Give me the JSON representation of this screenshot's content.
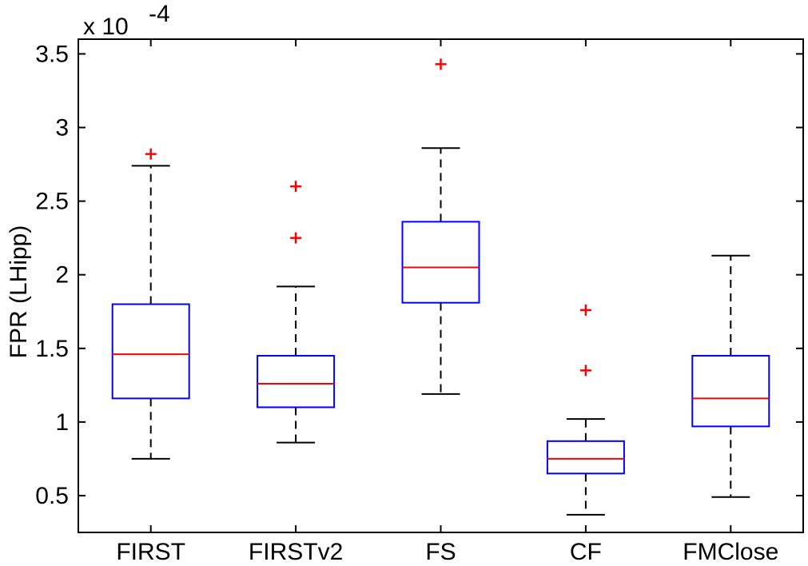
{
  "chart_data": {
    "type": "box",
    "ylabel": "FPR (LHipp)",
    "xlabel": "",
    "title": "",
    "y_multiplier": "x 10",
    "y_exponent": "-4",
    "ylim": [
      0.25,
      3.6
    ],
    "yticks": [
      0.5,
      1,
      1.5,
      2,
      2.5,
      3,
      3.5
    ],
    "ytick_labels": [
      "0.5",
      "1",
      "1.5",
      "2",
      "2.5",
      "3",
      "3.5"
    ],
    "grid": false,
    "categories": [
      "FIRST",
      "FIRSTv2",
      "FS",
      "CF",
      "FMClose"
    ],
    "boxes": [
      {
        "name": "FIRST",
        "whisker_low": 0.75,
        "q1": 1.16,
        "median": 1.46,
        "q3": 1.8,
        "whisker_high": 2.74,
        "outliers": [
          2.82
        ]
      },
      {
        "name": "FIRSTv2",
        "whisker_low": 0.86,
        "q1": 1.1,
        "median": 1.26,
        "q3": 1.45,
        "whisker_high": 1.92,
        "outliers": [
          2.6,
          2.25
        ]
      },
      {
        "name": "FS",
        "whisker_low": 1.19,
        "q1": 1.81,
        "median": 2.05,
        "q3": 2.36,
        "whisker_high": 2.86,
        "outliers": [
          3.43
        ]
      },
      {
        "name": "CF",
        "whisker_low": 0.37,
        "q1": 0.65,
        "median": 0.75,
        "q3": 0.87,
        "whisker_high": 1.02,
        "outliers": [
          1.76,
          1.35
        ]
      },
      {
        "name": "FMClose",
        "whisker_low": 0.49,
        "q1": 0.97,
        "median": 1.16,
        "q3": 1.45,
        "whisker_high": 2.13,
        "outliers": []
      }
    ],
    "colors": {
      "box": "#0000ff",
      "median": "#ff0000",
      "whisker": "#000000",
      "outlier": "#ff0000",
      "axes": "#000000"
    }
  }
}
